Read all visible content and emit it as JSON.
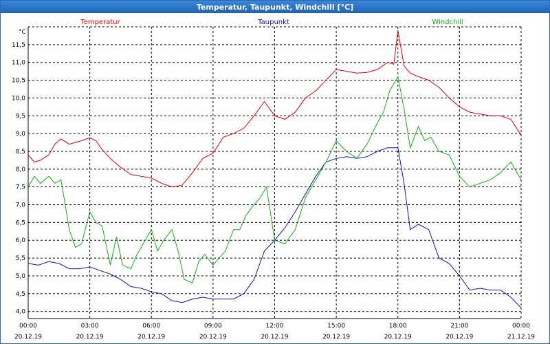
{
  "window": {
    "title": "Temperatur, Taupunkt, Windchill [°C]"
  },
  "chart_data": {
    "type": "line",
    "title": "Temperatur, Taupunkt, Windchill [°C]",
    "ylabel": "°C",
    "ylim": [
      3.8,
      12.0
    ],
    "xlim": [
      0,
      24
    ],
    "grid": true,
    "yticks": [
      4.0,
      4.5,
      5.0,
      5.5,
      6.0,
      6.5,
      7.0,
      7.5,
      8.0,
      8.5,
      9.0,
      9.5,
      10.0,
      10.5,
      11.0,
      11.5
    ],
    "ytick_labels": [
      "4,0",
      "4,5",
      "5,0",
      "5,5",
      "6,0",
      "6,5",
      "7,0",
      "7,5",
      "8,0",
      "8,5",
      "9,0",
      "9,5",
      "10,0",
      "10,5",
      "11,0",
      "11,5"
    ],
    "xticks": [
      {
        "time": "00:00",
        "date": "20.12.19"
      },
      {
        "time": "03:00",
        "date": "20.12.19"
      },
      {
        "time": "06:00",
        "date": "20.12.19"
      },
      {
        "time": "09:00",
        "date": "20.12.19"
      },
      {
        "time": "12:00",
        "date": "20.12.19"
      },
      {
        "time": "15:00",
        "date": "20.12.19"
      },
      {
        "time": "18:00",
        "date": "20.12.19"
      },
      {
        "time": "21:00",
        "date": "20.12.19"
      },
      {
        "time": "00:00",
        "date": "21.12.19"
      }
    ],
    "series": [
      {
        "name": "Temperatur",
        "color": "#e00000",
        "x": [
          0,
          0.3,
          0.6,
          1,
          1.3,
          1.6,
          2,
          2.3,
          2.6,
          3,
          3.3,
          3.6,
          4,
          4.5,
          5,
          5.5,
          6,
          6.5,
          7,
          7.5,
          8,
          8.5,
          9,
          9.5,
          10,
          10.5,
          11,
          11.5,
          12,
          12.5,
          13,
          13.5,
          14,
          14.5,
          15,
          15.5,
          16,
          16.5,
          17,
          17.5,
          17.8,
          18,
          18.3,
          18.6,
          19,
          19.5,
          20,
          20.5,
          21,
          21.5,
          22,
          22.5,
          23,
          23.5,
          24
        ],
        "values": [
          8.4,
          8.2,
          8.25,
          8.4,
          8.7,
          8.85,
          8.7,
          8.75,
          8.8,
          8.88,
          8.8,
          8.55,
          8.3,
          8.05,
          7.85,
          7.8,
          7.75,
          7.6,
          7.5,
          7.55,
          7.9,
          8.3,
          8.45,
          8.9,
          9.0,
          9.15,
          9.5,
          9.9,
          9.5,
          9.4,
          9.6,
          10.0,
          10.2,
          10.5,
          10.8,
          10.75,
          10.7,
          10.72,
          10.8,
          11.0,
          10.95,
          11.9,
          10.9,
          10.7,
          10.6,
          10.5,
          10.3,
          10.0,
          9.75,
          9.6,
          9.55,
          9.5,
          9.5,
          9.4,
          8.95
        ]
      },
      {
        "name": "Taupunkt",
        "color": "#1010c0",
        "x": [
          0,
          0.5,
          1,
          1.5,
          2,
          2.5,
          3,
          3.5,
          4,
          4.5,
          5,
          5.5,
          6,
          6.5,
          7,
          7.5,
          8,
          8.5,
          9,
          9.5,
          10,
          10.5,
          11,
          11.5,
          12,
          12.5,
          13,
          13.5,
          14,
          14.5,
          15,
          15.5,
          16,
          16.5,
          17,
          17.5,
          18,
          18.3,
          18.6,
          19,
          19.5,
          20,
          20.5,
          21,
          21.5,
          22,
          22.5,
          23,
          23.5,
          24
        ],
        "values": [
          5.35,
          5.3,
          5.4,
          5.35,
          5.2,
          5.2,
          5.25,
          5.15,
          5.05,
          4.9,
          4.7,
          4.65,
          4.55,
          4.5,
          4.3,
          4.25,
          4.35,
          4.4,
          4.35,
          4.35,
          4.35,
          4.5,
          4.9,
          5.7,
          6.0,
          6.35,
          6.8,
          7.3,
          7.8,
          8.2,
          8.3,
          8.35,
          8.3,
          8.35,
          8.5,
          8.6,
          8.6,
          7.6,
          6.3,
          6.45,
          6.3,
          5.5,
          5.35,
          5.0,
          4.6,
          4.65,
          4.6,
          4.6,
          4.4,
          4.1
        ]
      },
      {
        "name": "Windchill",
        "color": "#10b010",
        "x": [
          0,
          0.3,
          0.6,
          1,
          1.3,
          1.6,
          2,
          2.3,
          2.6,
          3,
          3.3,
          3.6,
          4,
          4.3,
          4.6,
          5,
          5.3,
          5.6,
          6,
          6.3,
          6.6,
          7,
          7.3,
          7.6,
          8,
          8.3,
          8.6,
          9,
          9.3,
          9.6,
          10,
          10.3,
          10.6,
          11,
          11.3,
          11.6,
          12,
          12.5,
          13,
          13.5,
          14,
          14.5,
          15,
          15.5,
          16,
          16.5,
          17,
          17.3,
          17.6,
          18,
          18.3,
          18.6,
          19,
          19.3,
          19.6,
          20,
          20.5,
          21,
          21.5,
          22,
          22.5,
          23,
          23.5,
          24
        ],
        "values": [
          7.5,
          7.8,
          7.6,
          7.8,
          7.6,
          7.7,
          6.3,
          5.8,
          5.9,
          6.8,
          6.5,
          6.4,
          5.3,
          6.1,
          5.3,
          5.2,
          5.6,
          5.9,
          6.3,
          5.7,
          6.0,
          6.3,
          5.7,
          4.9,
          4.8,
          5.4,
          5.6,
          5.3,
          5.5,
          5.7,
          6.3,
          6.3,
          6.7,
          7.0,
          7.2,
          7.5,
          6.0,
          5.9,
          6.3,
          7.2,
          7.7,
          8.2,
          8.8,
          8.5,
          8.3,
          8.7,
          9.3,
          9.6,
          10.2,
          10.6,
          9.7,
          8.6,
          9.2,
          8.8,
          8.9,
          8.5,
          8.4,
          7.8,
          7.5,
          7.6,
          7.7,
          7.9,
          8.2,
          7.7
        ]
      }
    ]
  }
}
